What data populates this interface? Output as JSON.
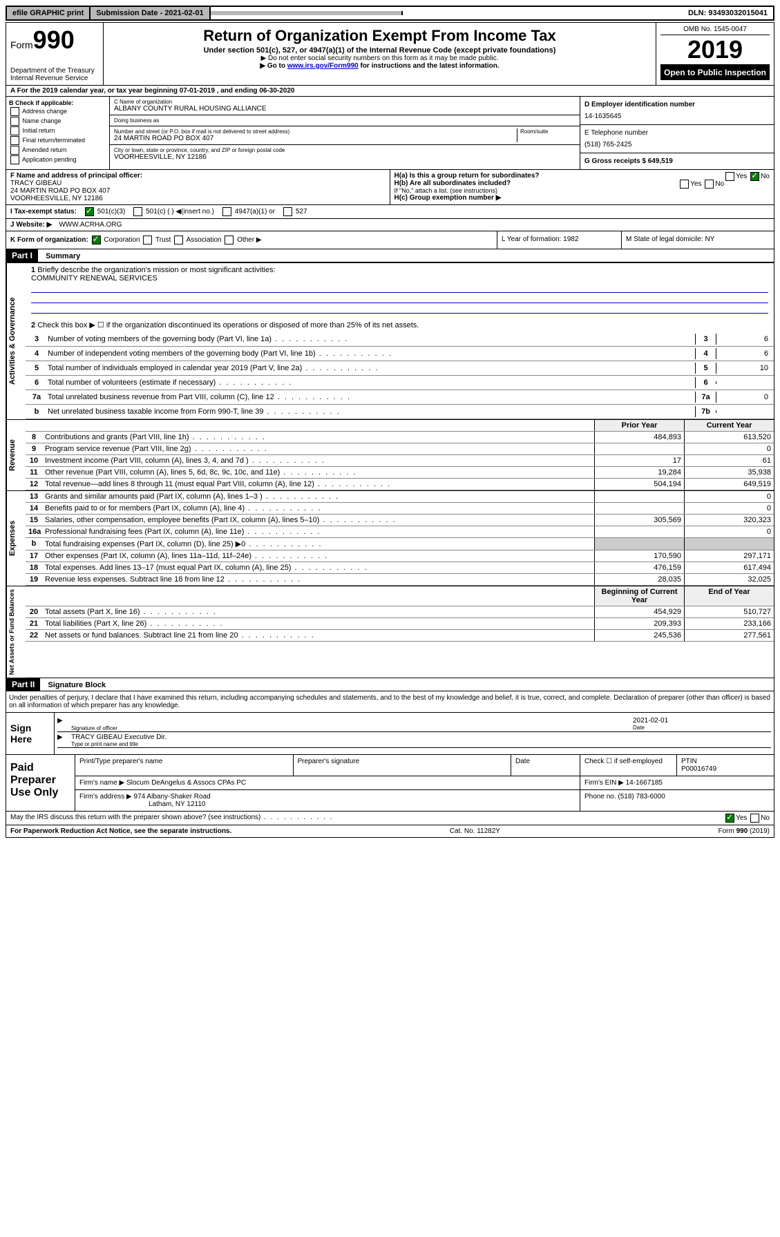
{
  "top_bar": {
    "efile": "efile GRAPHIC print",
    "submission": "Submission Date - 2021-02-01",
    "dln": "DLN: 93493032015041"
  },
  "header": {
    "form_prefix": "Form",
    "form_num": "990",
    "dept": "Department of the Treasury\nInternal Revenue Service",
    "title": "Return of Organization Exempt From Income Tax",
    "subtitle": "Under section 501(c), 527, or 4947(a)(1) of the Internal Revenue Code (except private foundations)",
    "note1": "▶ Do not enter social security numbers on this form as it may be made public.",
    "note2_pre": "▶ Go to ",
    "note2_link": "www.irs.gov/Form990",
    "note2_post": " for instructions and the latest information.",
    "omb": "OMB No. 1545-0047",
    "year": "2019",
    "open": "Open to Public Inspection"
  },
  "section_a": "A For the 2019 calendar year, or tax year beginning 07-01-2019    , and ending 06-30-2020",
  "check_b": {
    "label": "B Check if applicable:",
    "opts": [
      "Address change",
      "Name change",
      "Initial return",
      "Final return/terminated",
      "Amended return",
      "Application pending"
    ]
  },
  "entity": {
    "name_label": "C Name of organization",
    "name": "ALBANY COUNTY RURAL HOUSING ALLIANCE",
    "dba_label": "Doing business as",
    "addr_label": "Number and street (or P.O. box if mail is not delivered to street address)",
    "room_label": "Room/suite",
    "addr": "24 MARTIN ROAD PO BOX 407",
    "city_label": "City or town, state or province, country, and ZIP or foreign postal code",
    "city": "VOORHEESVILLE, NY  12186",
    "ein_label": "D Employer identification number",
    "ein": "14-1635645",
    "phone_label": "E Telephone number",
    "phone": "(518) 765-2425",
    "gross_label": "G Gross receipts $ 649,519"
  },
  "officer": {
    "label": "F  Name and address of principal officer:",
    "name": "TRACY GIBEAU",
    "addr1": "24 MARTIN ROAD PO BOX 407",
    "addr2": "VOORHEESVILLE, NY  12186"
  },
  "group": {
    "ha": "H(a)  Is this a group return for subordinates?",
    "hb": "H(b)  Are all subordinates included?",
    "hb_note": "If \"No,\" attach a list. (see instructions)",
    "hc": "H(c)  Group exemption number ▶"
  },
  "status": {
    "label": "I  Tax-exempt status:",
    "c3": "501(c)(3)",
    "c": "501(c) (  ) ◀(insert no.)",
    "a1": "4947(a)(1) or",
    "s527": "527"
  },
  "website": {
    "label": "J  Website: ▶",
    "value": "WWW.ACRHA.ORG"
  },
  "k_row": {
    "k": "K Form of organization:",
    "corp": "Corporation",
    "trust": "Trust",
    "assoc": "Association",
    "other": "Other ▶",
    "l": "L Year of formation: 1982",
    "m": "M State of legal domicile: NY"
  },
  "part1": {
    "header": "Part I",
    "title": "Summary",
    "vert_ag": "Activities & Governance",
    "l1": "Briefly describe the organization's mission or most significant activities:",
    "l1_val": "COMMUNITY RENEWAL SERVICES",
    "l2": "Check this box ▶ ☐  if the organization discontinued its operations or disposed of more than 25% of its net assets.",
    "lines": [
      {
        "n": "3",
        "t": "Number of voting members of the governing body (Part VI, line 1a)",
        "box": "3",
        "v": "6"
      },
      {
        "n": "4",
        "t": "Number of independent voting members of the governing body (Part VI, line 1b)",
        "box": "4",
        "v": "6"
      },
      {
        "n": "5",
        "t": "Total number of individuals employed in calendar year 2019 (Part V, line 2a)",
        "box": "5",
        "v": "10"
      },
      {
        "n": "6",
        "t": "Total number of volunteers (estimate if necessary)",
        "box": "6",
        "v": ""
      },
      {
        "n": "7a",
        "t": "Total unrelated business revenue from Part VIII, column (C), line 12",
        "box": "7a",
        "v": "0"
      },
      {
        "n": "b",
        "t": "Net unrelated business taxable income from Form 990-T, line 39",
        "box": "7b",
        "v": ""
      }
    ]
  },
  "finance": {
    "hdr_prior": "Prior Year",
    "hdr_curr": "Current Year",
    "vert_rev": "Revenue",
    "vert_exp": "Expenses",
    "vert_net": "Net Assets or Fund Balances",
    "rev": [
      {
        "n": "8",
        "t": "Contributions and grants (Part VIII, line 1h)",
        "p": "484,893",
        "c": "613,520"
      },
      {
        "n": "9",
        "t": "Program service revenue (Part VIII, line 2g)",
        "p": "",
        "c": "0"
      },
      {
        "n": "10",
        "t": "Investment income (Part VIII, column (A), lines 3, 4, and 7d )",
        "p": "17",
        "c": "61"
      },
      {
        "n": "11",
        "t": "Other revenue (Part VIII, column (A), lines 5, 6d, 8c, 9c, 10c, and 11e)",
        "p": "19,284",
        "c": "35,938"
      },
      {
        "n": "12",
        "t": "Total revenue—add lines 8 through 11 (must equal Part VIII, column (A), line 12)",
        "p": "504,194",
        "c": "649,519"
      }
    ],
    "exp": [
      {
        "n": "13",
        "t": "Grants and similar amounts paid (Part IX, column (A), lines 1–3 )",
        "p": "",
        "c": "0"
      },
      {
        "n": "14",
        "t": "Benefits paid to or for members (Part IX, column (A), line 4)",
        "p": "",
        "c": "0"
      },
      {
        "n": "15",
        "t": "Salaries, other compensation, employee benefits (Part IX, column (A), lines 5–10)",
        "p": "305,569",
        "c": "320,323"
      },
      {
        "n": "16a",
        "t": "Professional fundraising fees (Part IX, column (A), line 11e)",
        "p": "",
        "c": "0"
      },
      {
        "n": "b",
        "t": "Total fundraising expenses (Part IX, column (D), line 25) ▶0",
        "p": "shade",
        "c": "shade"
      },
      {
        "n": "17",
        "t": "Other expenses (Part IX, column (A), lines 11a–11d, 11f–24e)",
        "p": "170,590",
        "c": "297,171"
      },
      {
        "n": "18",
        "t": "Total expenses. Add lines 13–17 (must equal Part IX, column (A), line 25)",
        "p": "476,159",
        "c": "617,494"
      },
      {
        "n": "19",
        "t": "Revenue less expenses. Subtract line 18 from line 12",
        "p": "28,035",
        "c": "32,025"
      }
    ],
    "hdr_beg": "Beginning of Current Year",
    "hdr_end": "End of Year",
    "net": [
      {
        "n": "20",
        "t": "Total assets (Part X, line 16)",
        "p": "454,929",
        "c": "510,727"
      },
      {
        "n": "21",
        "t": "Total liabilities (Part X, line 26)",
        "p": "209,393",
        "c": "233,166"
      },
      {
        "n": "22",
        "t": "Net assets or fund balances. Subtract line 21 from line 20",
        "p": "245,536",
        "c": "277,561"
      }
    ]
  },
  "part2": {
    "header": "Part II",
    "title": "Signature Block",
    "penalty": "Under penalties of perjury, I declare that I have examined this return, including accompanying schedules and statements, and to the best of my knowledge and belief, it is true, correct, and complete. Declaration of preparer (other than officer) is based on all information of which preparer has any knowledge.",
    "sign_here": "Sign Here",
    "sig_of_officer": "Signature of officer",
    "date": "2021-02-01",
    "date_lbl": "Date",
    "officer_name": "TRACY GIBEAU  Executive Dir.",
    "type_name": "Type or print name and title"
  },
  "paid": {
    "label": "Paid Preparer Use Only",
    "h_name": "Print/Type preparer's name",
    "h_sig": "Preparer's signature",
    "h_date": "Date",
    "self_emp": "Check ☐ if self-employed",
    "ptin_lbl": "PTIN",
    "ptin": "P00016749",
    "firm_name_lbl": "Firm's name       ▶",
    "firm_name": "Slocum DeAngelus & Assocs CPAs PC",
    "firm_ein_lbl": "Firm's EIN ▶",
    "firm_ein": "14-1667185",
    "firm_addr_lbl": "Firm's address ▶",
    "firm_addr": "974 Albany-Shaker Road",
    "firm_city": "Latham, NY  12110",
    "phone_lbl": "Phone no.",
    "phone": "(518) 783-6000"
  },
  "discuss": "May the IRS discuss this return with the preparer shown above? (see instructions)",
  "footer": {
    "pra": "For Paperwork Reduction Act Notice, see the separate instructions.",
    "cat": "Cat. No. 11282Y",
    "form": "Form 990 (2019)"
  }
}
